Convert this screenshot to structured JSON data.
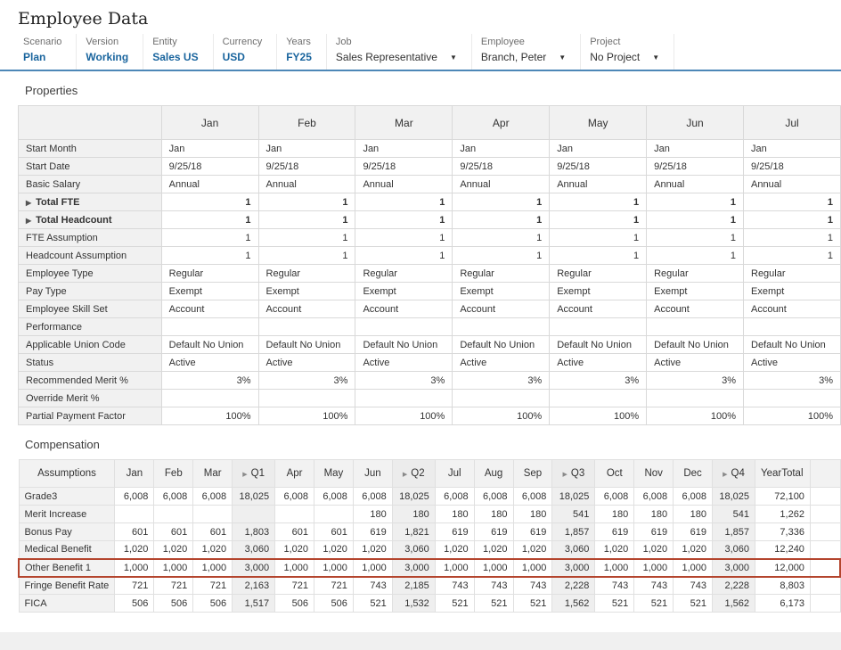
{
  "icons": {
    "dropdown": "▼",
    "expand": "▶",
    "quarter_collapse": "▶"
  },
  "colors": {
    "accent_blue": "#4d87b7",
    "link_blue": "#1a659e",
    "highlight_red": "#b4452e",
    "header_gray": "#f1f1f1"
  },
  "page": {
    "title": "Employee Data"
  },
  "pov": {
    "items": [
      {
        "label": "Scenario",
        "value": "Plan",
        "link": true,
        "dropdown": false
      },
      {
        "label": "Version",
        "value": "Working",
        "link": true,
        "dropdown": false
      },
      {
        "label": "Entity",
        "value": "Sales US",
        "link": true,
        "dropdown": false
      },
      {
        "label": "Currency",
        "value": "USD",
        "link": true,
        "dropdown": false
      },
      {
        "label": "Years",
        "value": "FY25",
        "link": true,
        "dropdown": false
      },
      {
        "label": "Job",
        "value": "Sales Representative",
        "link": false,
        "dropdown": true
      },
      {
        "label": "Employee",
        "value": "Branch, Peter",
        "link": false,
        "dropdown": true
      },
      {
        "label": "Project",
        "value": "No Project",
        "link": false,
        "dropdown": true
      }
    ]
  },
  "properties": {
    "heading": "Properties",
    "columns": [
      "Jan",
      "Feb",
      "Mar",
      "Apr",
      "May",
      "Jun",
      "Jul"
    ],
    "rows": [
      {
        "label": "Start Month",
        "align": "left",
        "bold": false,
        "expand": false,
        "values": [
          "Jan",
          "Jan",
          "Jan",
          "Jan",
          "Jan",
          "Jan",
          "Jan"
        ]
      },
      {
        "label": "Start Date",
        "align": "left",
        "bold": false,
        "expand": false,
        "values": [
          "9/25/18",
          "9/25/18",
          "9/25/18",
          "9/25/18",
          "9/25/18",
          "9/25/18",
          "9/25/18"
        ]
      },
      {
        "label": "Basic Salary",
        "align": "left",
        "bold": false,
        "expand": false,
        "values": [
          "Annual",
          "Annual",
          "Annual",
          "Annual",
          "Annual",
          "Annual",
          "Annual"
        ]
      },
      {
        "label": "Total FTE",
        "align": "right",
        "bold": true,
        "expand": true,
        "values": [
          "1",
          "1",
          "1",
          "1",
          "1",
          "1",
          "1"
        ]
      },
      {
        "label": "Total Headcount",
        "align": "right",
        "bold": true,
        "expand": true,
        "values": [
          "1",
          "1",
          "1",
          "1",
          "1",
          "1",
          "1"
        ]
      },
      {
        "label": "FTE Assumption",
        "align": "right",
        "bold": false,
        "expand": false,
        "values": [
          "1",
          "1",
          "1",
          "1",
          "1",
          "1",
          "1"
        ]
      },
      {
        "label": "Headcount Assumption",
        "align": "right",
        "bold": false,
        "expand": false,
        "values": [
          "1",
          "1",
          "1",
          "1",
          "1",
          "1",
          "1"
        ]
      },
      {
        "label": "Employee Type",
        "align": "left",
        "bold": false,
        "expand": false,
        "values": [
          "Regular",
          "Regular",
          "Regular",
          "Regular",
          "Regular",
          "Regular",
          "Regular"
        ]
      },
      {
        "label": "Pay Type",
        "align": "left",
        "bold": false,
        "expand": false,
        "values": [
          "Exempt",
          "Exempt",
          "Exempt",
          "Exempt",
          "Exempt",
          "Exempt",
          "Exempt"
        ]
      },
      {
        "label": "Employee Skill Set",
        "align": "left",
        "bold": false,
        "expand": false,
        "values": [
          "Account",
          "Account",
          "Account",
          "Account",
          "Account",
          "Account",
          "Account"
        ]
      },
      {
        "label": "Performance",
        "align": "left",
        "bold": false,
        "expand": false,
        "values": [
          "",
          "",
          "",
          "",
          "",
          "",
          ""
        ]
      },
      {
        "label": "Applicable Union Code",
        "align": "left",
        "bold": false,
        "expand": false,
        "values": [
          "Default No Union",
          "Default No Union",
          "Default No Union",
          "Default No Union",
          "Default No Union",
          "Default No Union",
          "Default No Union"
        ]
      },
      {
        "label": "Status",
        "align": "left",
        "bold": false,
        "expand": false,
        "values": [
          "Active",
          "Active",
          "Active",
          "Active",
          "Active",
          "Active",
          "Active"
        ]
      },
      {
        "label": "Recommended Merit %",
        "align": "right",
        "bold": false,
        "expand": false,
        "values": [
          "3%",
          "3%",
          "3%",
          "3%",
          "3%",
          "3%",
          "3%"
        ]
      },
      {
        "label": "Override Merit %",
        "align": "right",
        "bold": false,
        "expand": false,
        "values": [
          "",
          "",
          "",
          "",
          "",
          "",
          ""
        ]
      },
      {
        "label": "Partial Payment Factor",
        "align": "right",
        "bold": false,
        "expand": false,
        "values": [
          "100%",
          "100%",
          "100%",
          "100%",
          "100%",
          "100%",
          "100%"
        ]
      }
    ]
  },
  "compensation": {
    "heading": "Compensation",
    "header_label": "Assumptions",
    "columns": [
      {
        "label": "Jan",
        "type": "month"
      },
      {
        "label": "Feb",
        "type": "month"
      },
      {
        "label": "Mar",
        "type": "month"
      },
      {
        "label": "Q1",
        "type": "quarter"
      },
      {
        "label": "Apr",
        "type": "month"
      },
      {
        "label": "May",
        "type": "month"
      },
      {
        "label": "Jun",
        "type": "month"
      },
      {
        "label": "Q2",
        "type": "quarter"
      },
      {
        "label": "Jul",
        "type": "month"
      },
      {
        "label": "Aug",
        "type": "month"
      },
      {
        "label": "Sep",
        "type": "month"
      },
      {
        "label": "Q3",
        "type": "quarter"
      },
      {
        "label": "Oct",
        "type": "month"
      },
      {
        "label": "Nov",
        "type": "month"
      },
      {
        "label": "Dec",
        "type": "month"
      },
      {
        "label": "Q4",
        "type": "quarter"
      },
      {
        "label": "YearTotal",
        "type": "total"
      },
      {
        "label": "",
        "type": "stub"
      }
    ],
    "rows": [
      {
        "label": "Grade3",
        "highlight": false,
        "values": [
          "6,008",
          "6,008",
          "6,008",
          "18,025",
          "6,008",
          "6,008",
          "6,008",
          "18,025",
          "6,008",
          "6,008",
          "6,008",
          "18,025",
          "6,008",
          "6,008",
          "6,008",
          "18,025",
          "72,100",
          ""
        ]
      },
      {
        "label": "Merit Increase",
        "highlight": false,
        "values": [
          "",
          "",
          "",
          "",
          "",
          "",
          "180",
          "180",
          "180",
          "180",
          "180",
          "541",
          "180",
          "180",
          "180",
          "541",
          "1,262",
          ""
        ]
      },
      {
        "label": "Bonus Pay",
        "highlight": false,
        "values": [
          "601",
          "601",
          "601",
          "1,803",
          "601",
          "601",
          "619",
          "1,821",
          "619",
          "619",
          "619",
          "1,857",
          "619",
          "619",
          "619",
          "1,857",
          "7,336",
          ""
        ]
      },
      {
        "label": "Medical Benefit",
        "highlight": false,
        "values": [
          "1,020",
          "1,020",
          "1,020",
          "3,060",
          "1,020",
          "1,020",
          "1,020",
          "3,060",
          "1,020",
          "1,020",
          "1,020",
          "3,060",
          "1,020",
          "1,020",
          "1,020",
          "3,060",
          "12,240",
          ""
        ]
      },
      {
        "label": "Other Benefit 1",
        "highlight": true,
        "values": [
          "1,000",
          "1,000",
          "1,000",
          "3,000",
          "1,000",
          "1,000",
          "1,000",
          "3,000",
          "1,000",
          "1,000",
          "1,000",
          "3,000",
          "1,000",
          "1,000",
          "1,000",
          "3,000",
          "12,000",
          ""
        ]
      },
      {
        "label": "Fringe Benefit Rate",
        "highlight": false,
        "values": [
          "721",
          "721",
          "721",
          "2,163",
          "721",
          "721",
          "743",
          "2,185",
          "743",
          "743",
          "743",
          "2,228",
          "743",
          "743",
          "743",
          "2,228",
          "8,803",
          ""
        ]
      },
      {
        "label": "FICA",
        "highlight": false,
        "values": [
          "506",
          "506",
          "506",
          "1,517",
          "506",
          "506",
          "521",
          "1,532",
          "521",
          "521",
          "521",
          "1,562",
          "521",
          "521",
          "521",
          "1,562",
          "6,173",
          ""
        ]
      }
    ]
  }
}
